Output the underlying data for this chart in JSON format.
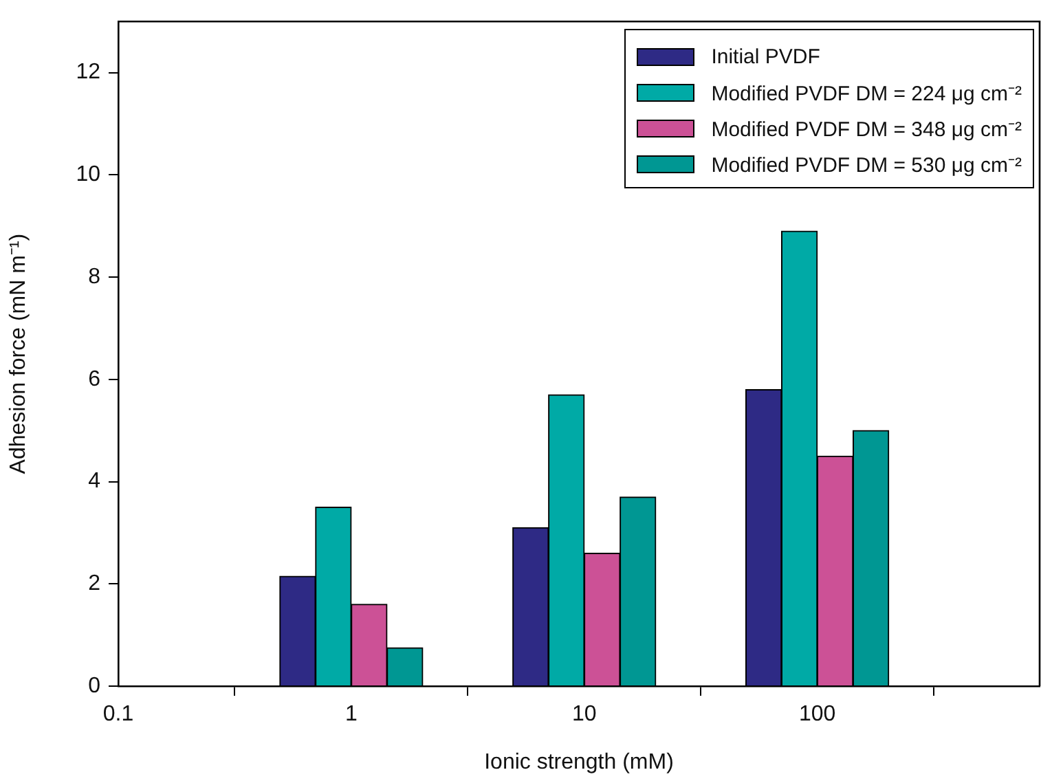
{
  "chart_data": {
    "type": "bar",
    "xlabel": "Ionic strength (mM)",
    "ylabel": "Adhesion force (mN m⁻¹)",
    "x": [
      1,
      10,
      100
    ],
    "log": "x",
    "xlim": [
      0.1,
      900
    ],
    "xticks": [
      0.1,
      1,
      10,
      100
    ],
    "ylim": [
      0,
      13
    ],
    "yticks": [
      0,
      2,
      4,
      6,
      8,
      10,
      12
    ],
    "legend": "top right",
    "series": [
      {
        "name": "Initial PVDF",
        "color": "#2e2a85",
        "values": [
          2.15,
          3.1,
          5.8
        ]
      },
      {
        "name": "Modified PVDF DM = 224 μg cm⁻²",
        "color": "#00aaa6",
        "values": [
          3.5,
          5.7,
          8.9
        ]
      },
      {
        "name": "Modified PVDF DM = 348 μg cm⁻²",
        "color": "#cc5196",
        "values": [
          1.6,
          2.6,
          4.5
        ]
      },
      {
        "name": "Modified PVDF DM = 530 μg cm⁻²",
        "color": "#009793",
        "values": [
          0.75,
          3.7,
          5.0
        ]
      }
    ]
  }
}
